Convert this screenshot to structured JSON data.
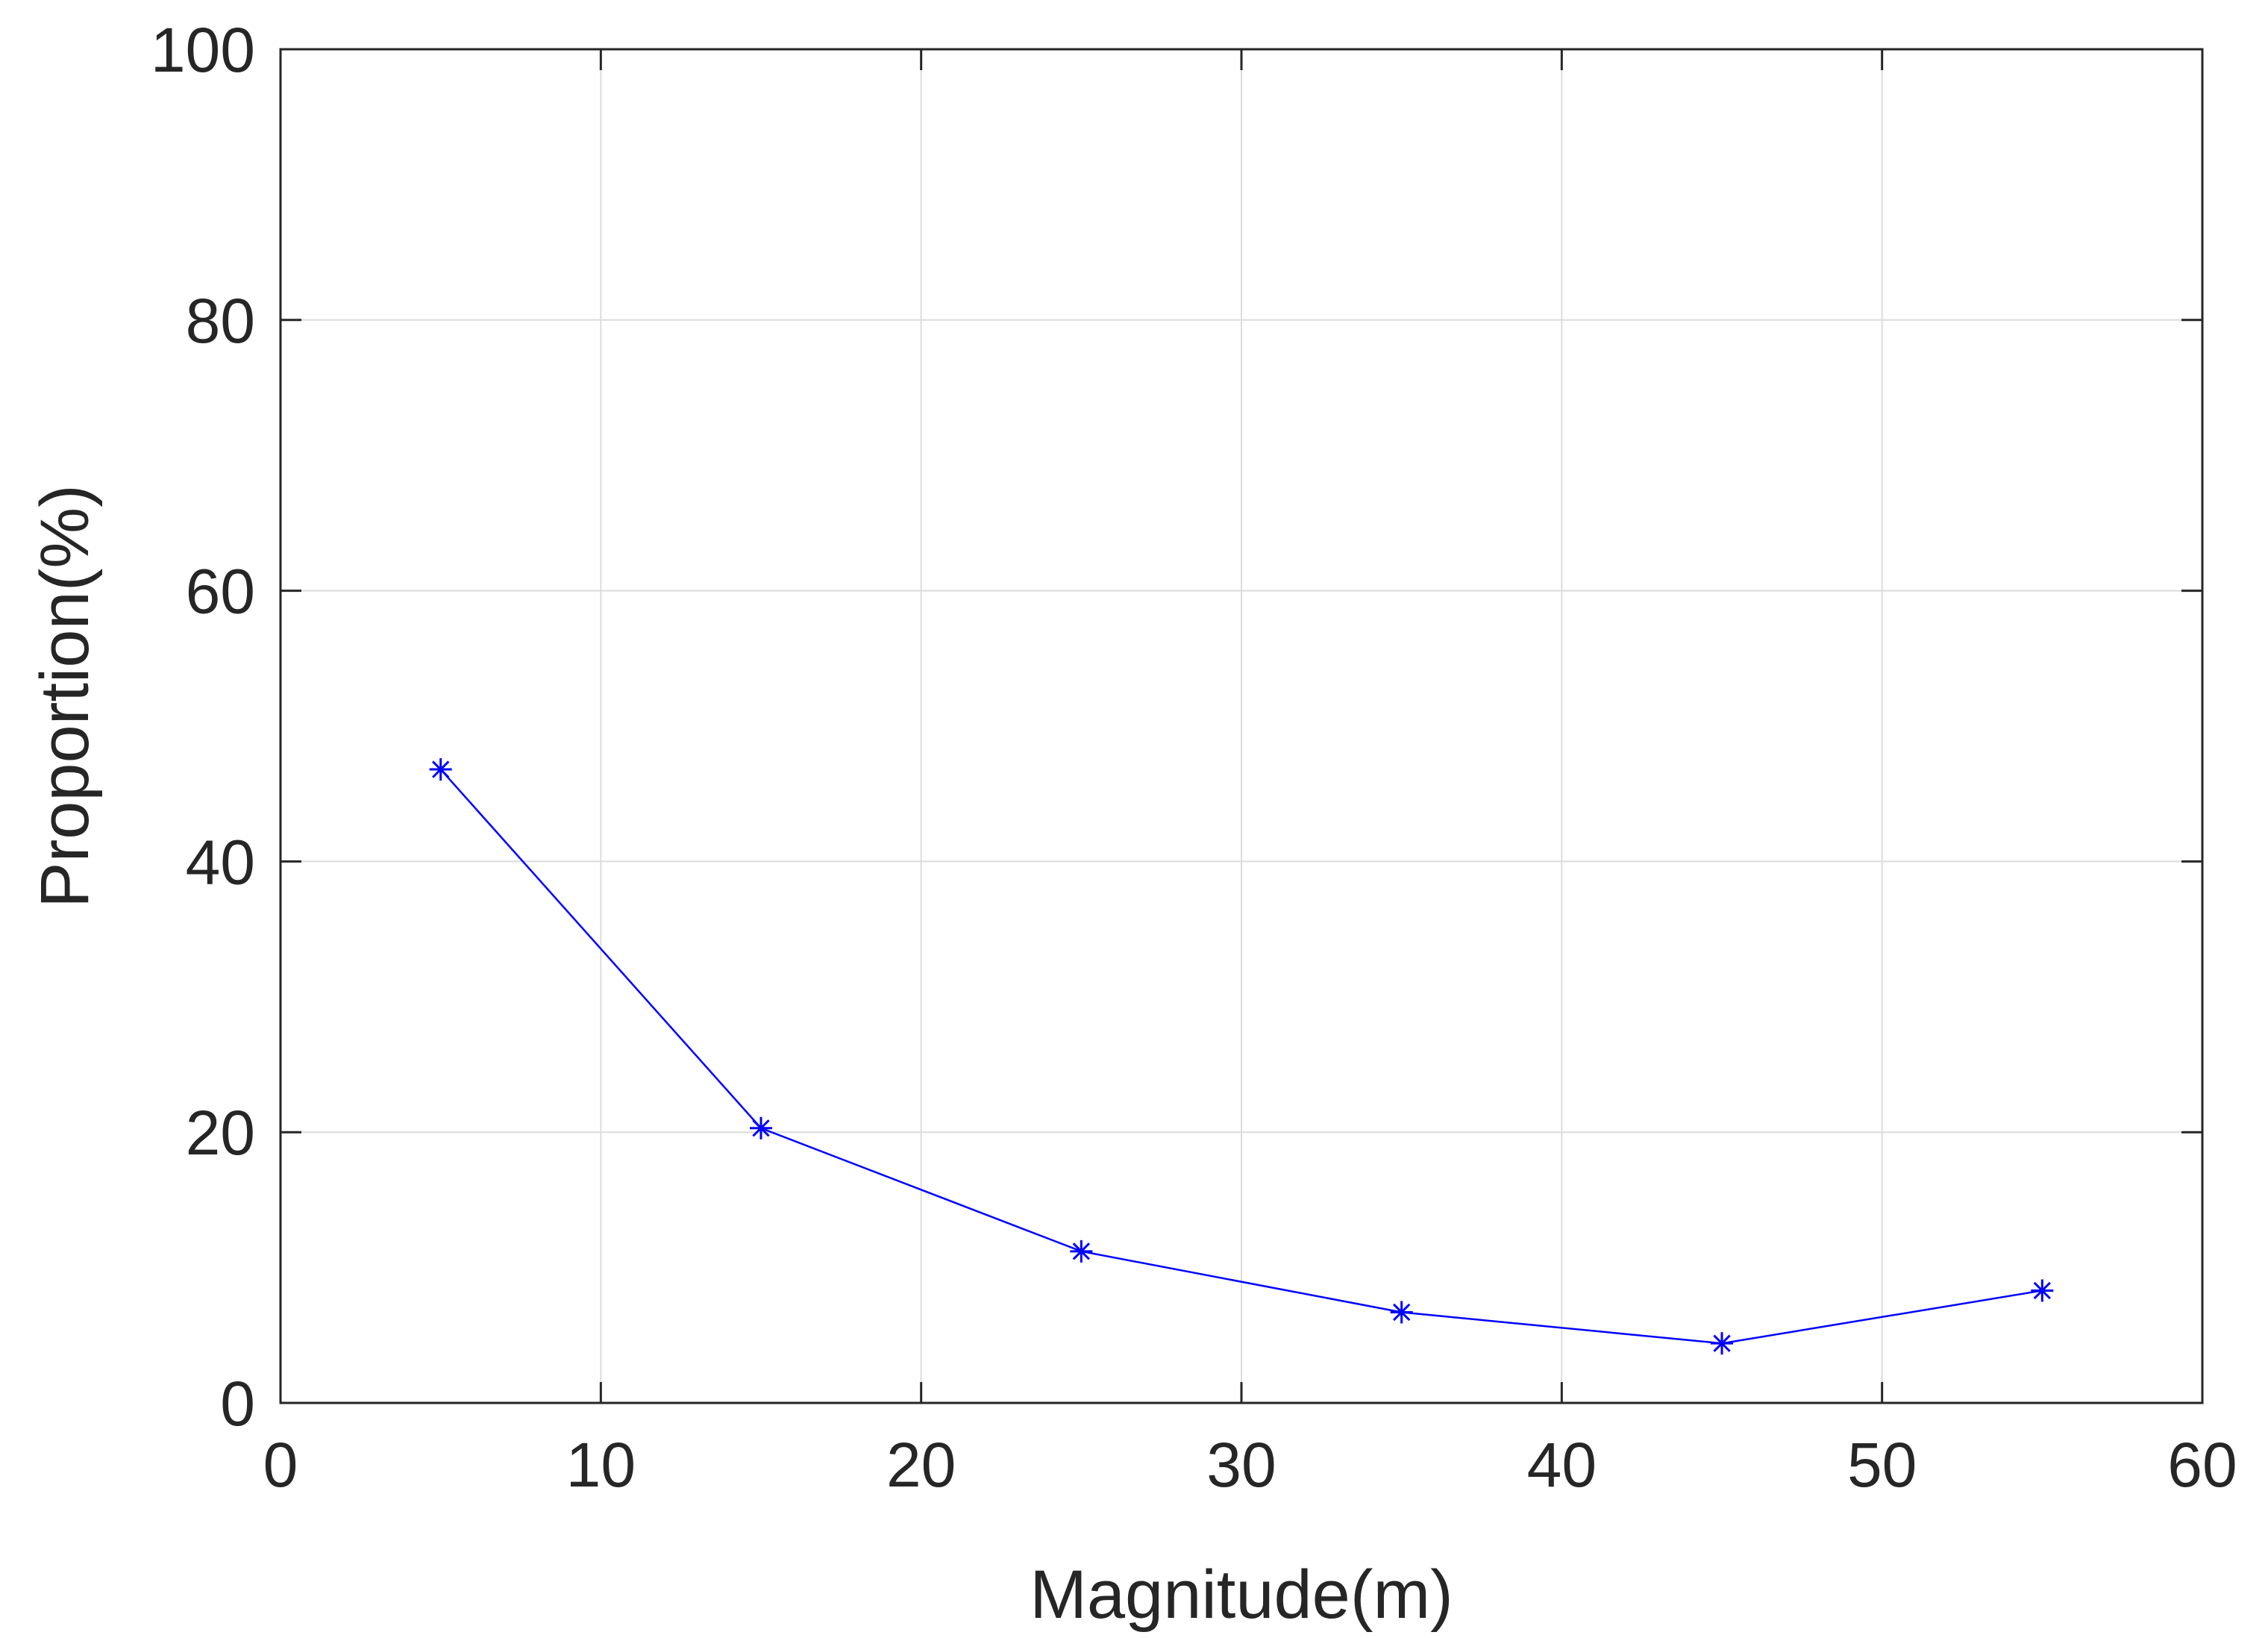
{
  "chart_data": {
    "type": "line",
    "xlabel": "Magnitude(m)",
    "ylabel": "Proportion(%)",
    "xlim": [
      0,
      60
    ],
    "ylim": [
      0,
      100
    ],
    "x_ticks": [
      0,
      10,
      20,
      30,
      40,
      50,
      60
    ],
    "y_ticks": [
      0,
      20,
      40,
      60,
      80,
      100
    ],
    "grid": true,
    "series": [
      {
        "marker": "asterisk",
        "color": "#0000ff",
        "x": [
          5,
          15,
          25,
          35,
          45,
          55
        ],
        "y": [
          46.8,
          20.3,
          11.2,
          6.7,
          4.4,
          8.3
        ]
      }
    ]
  }
}
